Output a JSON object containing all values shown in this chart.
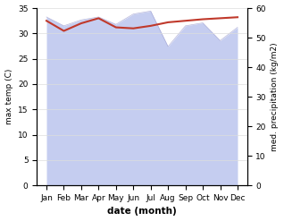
{
  "months": [
    "Jan",
    "Feb",
    "Mar",
    "Apr",
    "May",
    "Jun",
    "Jul",
    "Aug",
    "Sep",
    "Oct",
    "Nov",
    "Dec"
  ],
  "temp": [
    32.5,
    30.5,
    32.0,
    33.0,
    31.2,
    31.0,
    31.5,
    32.2,
    32.5,
    32.8,
    33.0,
    33.2
  ],
  "precip": [
    57.0,
    54.0,
    56.0,
    57.0,
    54.5,
    58.0,
    59.0,
    47.0,
    54.0,
    55.0,
    49.0,
    53.5
  ],
  "temp_color": "#c0392b",
  "precip_color": "#c5cdf0",
  "ylabel_left": "max temp (C)",
  "ylabel_right": "med. precipitation (kg/m2)",
  "xlabel": "date (month)",
  "ylim_left": [
    0,
    35
  ],
  "ylim_right": [
    0,
    60
  ],
  "yticks_left": [
    0,
    5,
    10,
    15,
    20,
    25,
    30,
    35
  ],
  "yticks_right": [
    0,
    10,
    20,
    30,
    40,
    50,
    60
  ],
  "grid_color": "#dddddd"
}
